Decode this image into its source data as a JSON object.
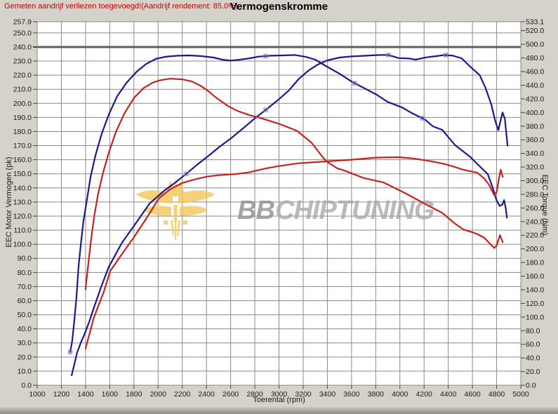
{
  "header": {
    "note": "Gemeten aandrijf verliezen toegevoegd!(Aandrijf rendement: 85.0%)",
    "title": "Vermogenskromme"
  },
  "watermark": {
    "brand_bold": "BB",
    "brand_rest": "CHIPTUNING",
    "emblem_icon": "eagle-wings-emblem",
    "emblem_color": "#f3c558",
    "text_color_bold": "#8e8e8e",
    "text_color_rest": "#a9a9a9"
  },
  "colors": {
    "tuned_curves": "#1a1a8e",
    "stock_curves": "#c62222",
    "grid": "#8a8a8a",
    "grid_bold": "#5e5e5e",
    "plot_bg": "#ffffff",
    "page_bg": "#d5d2ca",
    "marker": "#8888cc",
    "tick_text": "#1a1a1a"
  },
  "chart_data": {
    "type": "line",
    "title": "Vermogenskromme",
    "x_axis": {
      "label": "Toerental (rpm)",
      "min": 1000,
      "max": 5000,
      "ticks": [
        1000,
        1200,
        1400,
        1600,
        1800,
        2000,
        2200,
        2400,
        2600,
        2800,
        3000,
        3200,
        3400,
        3600,
        3800,
        4000,
        4200,
        4400,
        4600,
        4800,
        5000
      ]
    },
    "left_axis": {
      "label": "EEC Motor Vermogen (pk)",
      "min": 0,
      "max": 257.9,
      "ticks": [
        257.9,
        250.0,
        240.0,
        230.0,
        220.0,
        210.0,
        200.0,
        190.0,
        180.0,
        170.0,
        160.0,
        150.0,
        140.0,
        130.0,
        120.0,
        110.0,
        100.0,
        90.0,
        80.0,
        70.0,
        60.0,
        50.0,
        40.0,
        30.0,
        20.0,
        10.0,
        0.0
      ],
      "bold_gridline_value": 240.0
    },
    "right_axis": {
      "label": "EEC Torque (Nm)",
      "min": 0,
      "max": 533.1,
      "ticks": [
        533.1,
        520.0,
        500.0,
        480.0,
        460.0,
        440.0,
        420.0,
        400.0,
        380.0,
        360.0,
        340.0,
        320.0,
        300.0,
        280.0,
        260.0,
        240.0,
        220.0,
        200.0,
        180.0,
        160.0,
        140.0,
        120.0,
        100.0,
        80.0,
        60.0,
        40.0,
        20.0,
        0.0
      ]
    },
    "grid": true,
    "legend": "none",
    "series": [
      {
        "name": "tuned-torque-blue",
        "axis": "right",
        "color": "#1a1a8e",
        "peak": {
          "rpm_range": "2000-3150",
          "value_nm": 484
        },
        "marker_rpm": [
          1273,
          2889,
          3626,
          4186
        ],
        "points": [
          [
            1273,
            48.6
          ],
          [
            1290,
            66
          ],
          [
            1308,
            97
          ],
          [
            1325,
            130
          ],
          [
            1342,
            174
          ],
          [
            1362,
            209
          ],
          [
            1382,
            240
          ],
          [
            1412,
            273
          ],
          [
            1442,
            306
          ],
          [
            1482,
            337
          ],
          [
            1532,
            368
          ],
          [
            1592,
            397
          ],
          [
            1662,
            424
          ],
          [
            1740,
            444
          ],
          [
            1824,
            460
          ],
          [
            1900,
            471
          ],
          [
            1980,
            478.6
          ],
          [
            2060,
            481.7
          ],
          [
            2160,
            483.3
          ],
          [
            2260,
            483.7
          ],
          [
            2360,
            482.7
          ],
          [
            2460,
            480.6
          ],
          [
            2530,
            477.5
          ],
          [
            2600,
            476.1
          ],
          [
            2680,
            477.5
          ],
          [
            2760,
            479.6
          ],
          [
            2831,
            481.9
          ],
          [
            2930,
            483.3
          ],
          [
            3030,
            483.7
          ],
          [
            3131,
            484.3
          ],
          [
            3220,
            481.7
          ],
          [
            3300,
            477.5
          ],
          [
            3382,
            468.8
          ],
          [
            3500,
            456.9
          ],
          [
            3605,
            444.9
          ],
          [
            3700,
            436.2
          ],
          [
            3808,
            426.1
          ],
          [
            3900,
            415.5
          ],
          [
            4021,
            407.2
          ],
          [
            4100,
            399
          ],
          [
            4205,
            389.9
          ],
          [
            4273,
            379.7
          ],
          [
            4350,
            374.6
          ],
          [
            4456,
            352.3
          ],
          [
            4582,
            334.9
          ],
          [
            4640,
            324.6
          ],
          [
            4727,
            309.5
          ],
          [
            4766,
            290.4
          ],
          [
            4800,
            271
          ],
          [
            4825,
            262.9
          ],
          [
            4848,
            265
          ],
          [
            4862,
            271.6
          ],
          [
            4875,
            260
          ],
          [
            4885,
            245.8
          ]
        ]
      },
      {
        "name": "tuned-power-blue",
        "axis": "left",
        "color": "#1a1a8e",
        "peak": {
          "rpm_range": "3700-4400",
          "value_pk": 235
        },
        "marker_rpm": [
          2233,
          2890,
          3906,
          4380
        ],
        "points": [
          [
            1285,
            7
          ],
          [
            1305,
            14
          ],
          [
            1330,
            23
          ],
          [
            1360,
            30
          ],
          [
            1390,
            36
          ],
          [
            1430,
            45
          ],
          [
            1465,
            54
          ],
          [
            1530,
            70
          ],
          [
            1592,
            84
          ],
          [
            1700,
            101
          ],
          [
            1800,
            113
          ],
          [
            1930,
            129
          ],
          [
            2050,
            138
          ],
          [
            2130,
            143
          ],
          [
            2233,
            150
          ],
          [
            2330,
            157
          ],
          [
            2420,
            163
          ],
          [
            2505,
            169
          ],
          [
            2600,
            175
          ],
          [
            2700,
            182
          ],
          [
            2795,
            189
          ],
          [
            2900,
            196
          ],
          [
            3000,
            203
          ],
          [
            3080,
            209
          ],
          [
            3160,
            217
          ],
          [
            3240,
            223
          ],
          [
            3320,
            227.5
          ],
          [
            3400,
            230.5
          ],
          [
            3500,
            232.5
          ],
          [
            3600,
            233.3
          ],
          [
            3720,
            233.8
          ],
          [
            3830,
            234.3
          ],
          [
            3906,
            234.3
          ],
          [
            3990,
            232.1
          ],
          [
            4080,
            231.8
          ],
          [
            4130,
            231
          ],
          [
            4215,
            232.6
          ],
          [
            4300,
            233.5
          ],
          [
            4370,
            234.3
          ],
          [
            4440,
            233.8
          ],
          [
            4510,
            232
          ],
          [
            4582,
            226
          ],
          [
            4660,
            220
          ],
          [
            4708,
            211
          ],
          [
            4757,
            199
          ],
          [
            4787,
            188
          ],
          [
            4814,
            181
          ],
          [
            4849,
            193.5
          ],
          [
            4868,
            189
          ],
          [
            4890,
            170
          ]
        ]
      },
      {
        "name": "stock-torque-red",
        "axis": "right",
        "color": "#c62222",
        "peak": {
          "rpm_range": "2000-2200",
          "value_nm": 449
        },
        "marker_rpm": [],
        "points": [
          [
            1400,
            140.6
          ],
          [
            1412,
            161.2
          ],
          [
            1428,
            186
          ],
          [
            1448,
            217.1
          ],
          [
            1472,
            248.1
          ],
          [
            1502,
            279.1
          ],
          [
            1542,
            310.1
          ],
          [
            1592,
            341.1
          ],
          [
            1652,
            372.1
          ],
          [
            1722,
            399
          ],
          [
            1802,
            421.7
          ],
          [
            1882,
            436.2
          ],
          [
            1962,
            444.4
          ],
          [
            2022,
            447.5
          ],
          [
            2100,
            449.6
          ],
          [
            2200,
            448.6
          ],
          [
            2280,
            445.5
          ],
          [
            2350,
            439.3
          ],
          [
            2405,
            432.9
          ],
          [
            2480,
            421.7
          ],
          [
            2580,
            409.3
          ],
          [
            2660,
            402.1
          ],
          [
            2760,
            395.9
          ],
          [
            2830,
            392.8
          ],
          [
            3000,
            383.5
          ],
          [
            3150,
            373.1
          ],
          [
            3270,
            355.6
          ],
          [
            3350,
            337
          ],
          [
            3392,
            328.3
          ],
          [
            3480,
            318.3
          ],
          [
            3550,
            314.2
          ],
          [
            3700,
            303.9
          ],
          [
            3866,
            297.3
          ],
          [
            4050,
            281.1
          ],
          [
            4200,
            266.7
          ],
          [
            4350,
            252.8
          ],
          [
            4450,
            237.7
          ],
          [
            4524,
            228.6
          ],
          [
            4600,
            224.3
          ],
          [
            4640,
            221.8
          ],
          [
            4700,
            216
          ],
          [
            4750,
            206.7
          ],
          [
            4780,
            201.3
          ],
          [
            4800,
            204.7
          ],
          [
            4828,
            220.2
          ],
          [
            4850,
            209.8
          ]
        ]
      },
      {
        "name": "stock-power-red",
        "axis": "left",
        "color": "#c62222",
        "peak": {
          "rpm_range": "3800-4100",
          "value_pk": 162
        },
        "marker_rpm": [],
        "points": [
          [
            1400,
            26
          ],
          [
            1415,
            31
          ],
          [
            1435,
            37
          ],
          [
            1465,
            47
          ],
          [
            1495,
            54
          ],
          [
            1550,
            66
          ],
          [
            1604,
            81
          ],
          [
            1700,
            93
          ],
          [
            1800,
            105
          ],
          [
            1900,
            118
          ],
          [
            2010,
            133
          ],
          [
            2100,
            139
          ],
          [
            2200,
            143.5
          ],
          [
            2300,
            146
          ],
          [
            2405,
            148
          ],
          [
            2500,
            149
          ],
          [
            2640,
            149.8
          ],
          [
            2750,
            151
          ],
          [
            2890,
            153.8
          ],
          [
            3000,
            155.5
          ],
          [
            3160,
            157.5
          ],
          [
            3392,
            158.8
          ],
          [
            3600,
            160
          ],
          [
            3800,
            161.5
          ],
          [
            3985,
            161.8
          ],
          [
            4100,
            161
          ],
          [
            4250,
            159
          ],
          [
            4350,
            157.4
          ],
          [
            4450,
            155
          ],
          [
            4525,
            152.9
          ],
          [
            4640,
            150.8
          ],
          [
            4700,
            146.5
          ],
          [
            4737,
            142.2
          ],
          [
            4762,
            138
          ],
          [
            4782,
            134.7
          ],
          [
            4800,
            137
          ],
          [
            4820,
            147
          ],
          [
            4834,
            152.9
          ],
          [
            4850,
            147.9
          ]
        ]
      }
    ]
  }
}
